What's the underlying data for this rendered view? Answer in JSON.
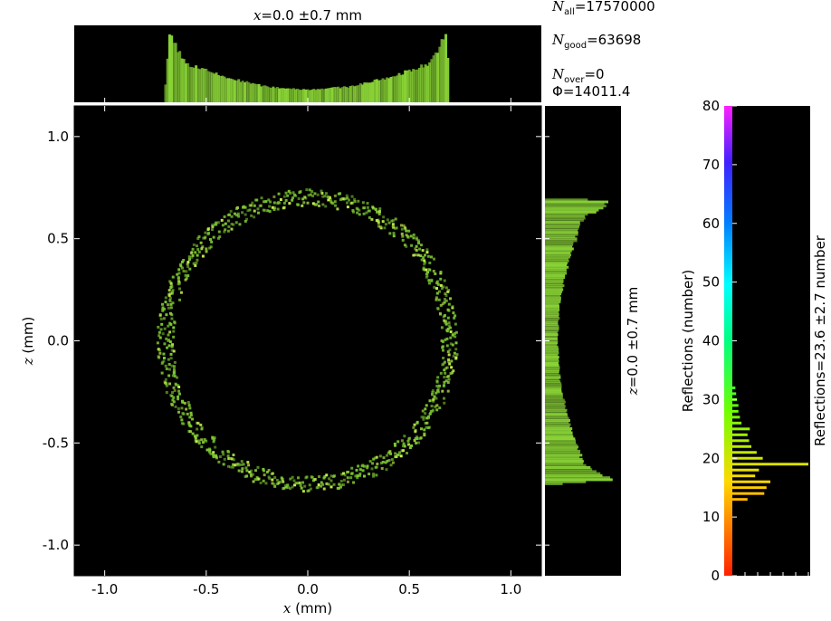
{
  "stats": {
    "n_all_symbol": "N",
    "n_all_sub": "all",
    "n_all_value": "=17570000",
    "n_good_symbol": "N",
    "n_good_sub": "good",
    "n_good_value": "=63698",
    "n_over_symbol": "N",
    "n_over_sub": "over",
    "n_over_value": "=0",
    "phi_symbol": "Φ",
    "phi_value": "=14011.4"
  },
  "top_hist_title": {
    "var": "x",
    "text": "=0.0 ±0.7 mm"
  },
  "right_hist_title": {
    "var": "z",
    "text": "=0.0 ±0.7 mm"
  },
  "colorbar_title": "Reflections=23.6 ±2.7 number",
  "colorbar_label": "Reflections (number)",
  "colorbar_ticks": [
    "0",
    "10",
    "20",
    "30",
    "40",
    "50",
    "60",
    "70",
    "80"
  ],
  "colors": {
    "background": "#000000",
    "ring": "#7ec832",
    "ring_bright": "#c8f050",
    "hist": "#8ad436"
  },
  "chart_data": [
    {
      "type": "heatmap",
      "description_shape": "ring",
      "xlabel": "x (mm)",
      "ylabel": "z (mm)",
      "xlim": [
        -1.15,
        1.15
      ],
      "ylim": [
        -1.15,
        1.15
      ],
      "xticks": [
        "-1.0",
        "-0.5",
        "0.0",
        "0.5",
        "1.0"
      ],
      "yticks": [
        "-1.0",
        "-0.5",
        "0.0",
        "0.5",
        "1.0"
      ],
      "ring_radius": 0.7,
      "ring_width": 0.04
    },
    {
      "type": "bar",
      "series": [
        {
          "x": [
            -0.7,
            -0.68,
            -0.6,
            -0.4,
            -0.2,
            0.0,
            0.2,
            0.4,
            0.6,
            0.68,
            0.7
          ],
          "values": [
            0.25,
            0.95,
            0.55,
            0.35,
            0.22,
            0.18,
            0.22,
            0.35,
            0.55,
            0.95,
            0.25
          ]
        }
      ]
    },
    {
      "type": "bar",
      "series": [
        {
          "z": [
            0.7,
            0.68,
            0.6,
            0.4,
            0.2,
            0.0,
            -0.2,
            -0.4,
            -0.6,
            -0.68,
            -0.7
          ],
          "values": [
            0.25,
            0.95,
            0.55,
            0.35,
            0.22,
            0.18,
            0.22,
            0.35,
            0.55,
            0.95,
            0.25
          ]
        }
      ]
    },
    {
      "type": "bar",
      "ylim": [
        0,
        80
      ],
      "categories": [
        13,
        14,
        15,
        16,
        17,
        18,
        19,
        20,
        21,
        22,
        23,
        24,
        25,
        26,
        27,
        28,
        29,
        30,
        31,
        32
      ],
      "values": [
        0.2,
        0.42,
        0.45,
        0.5,
        0.3,
        0.35,
        1.0,
        0.4,
        0.32,
        0.25,
        0.22,
        0.2,
        0.23,
        0.12,
        0.1,
        0.08,
        0.08,
        0.06,
        0.05,
        0.04
      ]
    }
  ]
}
